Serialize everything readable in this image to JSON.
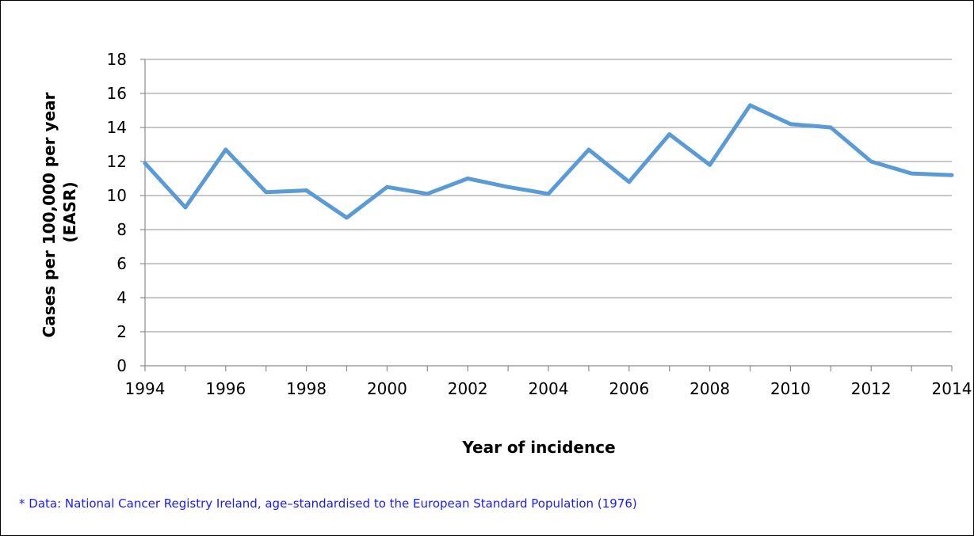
{
  "chart_data": {
    "type": "line",
    "title": "",
    "xlabel": "Year of incidence",
    "ylabel": [
      "Cases per 100,000 per year",
      "(EASR)"
    ],
    "xlim": [
      1994,
      2014
    ],
    "ylim": [
      0,
      18
    ],
    "x_ticks": [
      "1994",
      "1996",
      "1998",
      "2000",
      "2002",
      "2004",
      "2006",
      "2008",
      "2010",
      "2012",
      "2014"
    ],
    "y_ticks": [
      "0",
      "2",
      "4",
      "6",
      "8",
      "10",
      "12",
      "14",
      "16",
      "18"
    ],
    "grid": true,
    "legend": "none",
    "series": [
      {
        "color": "#5b9bd5",
        "x": [
          1994,
          1995,
          1996,
          1997,
          1998,
          1999,
          2000,
          2001,
          2002,
          2003,
          2004,
          2005,
          2006,
          2007,
          2008,
          2009,
          2010,
          2011,
          2012,
          2013,
          2014
        ],
        "values": [
          11.9,
          9.3,
          12.7,
          10.2,
          10.3,
          8.7,
          10.5,
          10.1,
          11.0,
          10.5,
          10.1,
          12.7,
          10.8,
          13.6,
          11.8,
          15.3,
          14.2,
          14.0,
          12.0,
          11.3,
          11.2
        ]
      }
    ]
  },
  "footnote": "* Data: National Cancer Registry Ireland, age–standardised to the European Standard Population (1976)"
}
